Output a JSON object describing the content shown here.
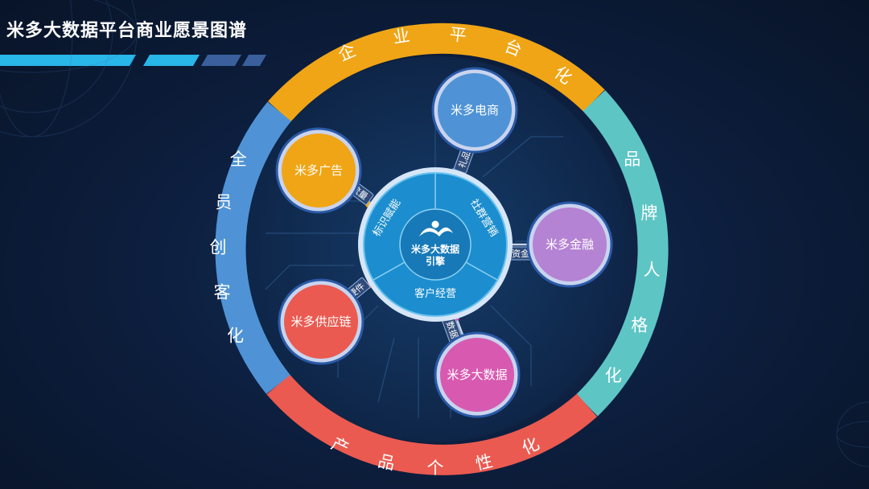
{
  "title": "米多大数据平台商业愿景图谱",
  "colors": {
    "orange": "#f0a516",
    "teal": "#5ec5c5",
    "red": "#ea5a50",
    "blue": "#4f93d6",
    "purple": "#b583d3",
    "pink": "#d85ab0",
    "core": "#1c8ecf",
    "accent": "#29b6e8"
  },
  "ring": {
    "top": "企业平台化",
    "right": "品牌人格化",
    "bottom": "产品个性化",
    "left": "全员创客化"
  },
  "core": {
    "line1": "米多大数据",
    "line2": "引擎",
    "seg_left": "标识赋能",
    "seg_right": "社群营销",
    "seg_bottom": "客户经营"
  },
  "nodes": {
    "ecommerce": {
      "label": "米多电商",
      "link": "礼品"
    },
    "ads": {
      "label": "米多广告",
      "link": "流量"
    },
    "finance": {
      "label": "米多金融",
      "link": "资金"
    },
    "supply": {
      "label": "米多供应链",
      "link": "硬件"
    },
    "bigdata": {
      "label": "米多大数据",
      "link": "数据"
    }
  }
}
